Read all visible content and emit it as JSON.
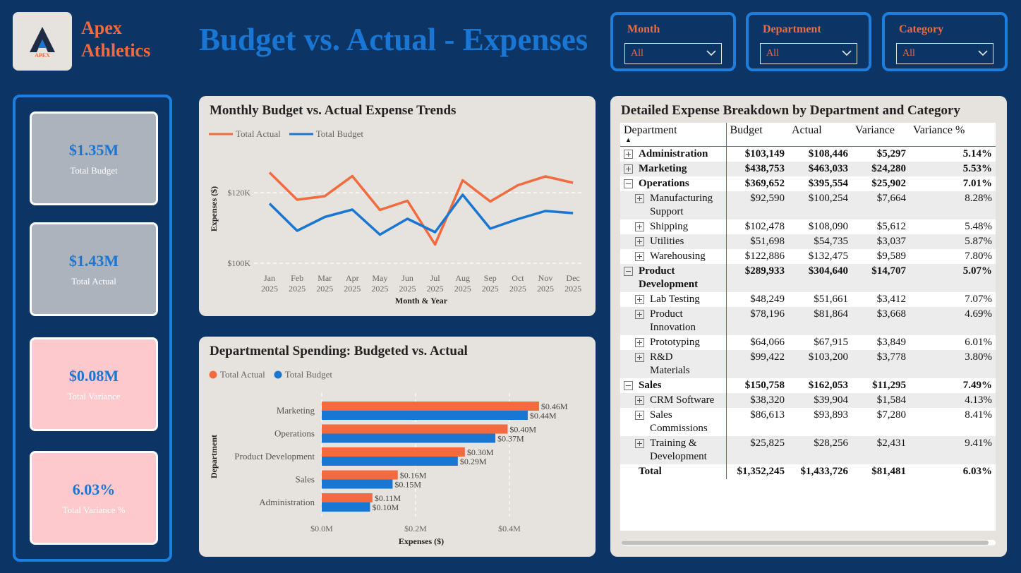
{
  "brand": {
    "line1": "Apex",
    "line2": "Athletics",
    "logo_text": "APEX"
  },
  "title": "Budget vs. Actual - Expenses",
  "slicers": [
    {
      "label": "Month",
      "value": "All"
    },
    {
      "label": "Department",
      "value": "All"
    },
    {
      "label": "Category",
      "value": "All"
    }
  ],
  "kpis": [
    {
      "value": "$1.35M",
      "caption": "Total Budget",
      "bg": "#adb3bc"
    },
    {
      "value": "$1.43M",
      "caption": "Total Actual",
      "bg": "#adb3bc"
    },
    {
      "value": "$0.08M",
      "caption": "Total Variance",
      "bg": "#fdc9cc"
    },
    {
      "value": "6.03%",
      "caption": "Total Variance %",
      "bg": "#fdc9cc"
    }
  ],
  "colors": {
    "actual": "#f26a3d",
    "budget": "#1976d2",
    "accent": "#1c7fe0",
    "background": "#0c3566"
  },
  "line_chart": {
    "title": "Monthly Budget vs. Actual Expense Trends",
    "legend": {
      "actual": "Total Actual",
      "budget": "Total Budget"
    }
  },
  "bar_chart": {
    "title": "Departmental Spending: Budgeted vs. Actual",
    "legend": {
      "actual": "Total Actual",
      "budget": "Total Budget"
    }
  },
  "chart_data": [
    {
      "type": "line",
      "title": "Monthly Budget vs. Actual Expense Trends",
      "xlabel": "Month & Year",
      "ylabel": "Expenses ($)",
      "x": [
        "Jan 2025",
        "Feb 2025",
        "Mar 2025",
        "Apr 2025",
        "May 2025",
        "Jun 2025",
        "Jul 2025",
        "Aug 2025",
        "Sep 2025",
        "Oct 2025",
        "Nov 2025",
        "Dec 2025"
      ],
      "yticks": [
        "$100K",
        "$120K"
      ],
      "ylim": [
        100000,
        127000
      ],
      "series": [
        {
          "name": "Total Actual",
          "values": [
            125700,
            118000,
            119000,
            124700,
            115100,
            117700,
            105300,
            123500,
            117500,
            122100,
            124600,
            122800
          ]
        },
        {
          "name": "Total Budget",
          "values": [
            116900,
            109200,
            113100,
            115200,
            108100,
            112600,
            108800,
            119400,
            109800,
            112500,
            114800,
            114200
          ]
        }
      ],
      "grid": "horizontal dashed",
      "legend_position": "top-left"
    },
    {
      "type": "bar",
      "orientation": "horizontal",
      "title": "Departmental Spending: Budgeted vs. Actual",
      "xlabel": "Expenses ($)",
      "ylabel": "Department",
      "categories": [
        "Marketing",
        "Operations",
        "Product Development",
        "Sales",
        "Administration"
      ],
      "xticks": [
        "$0.0M",
        "$0.2M",
        "$0.4M"
      ],
      "xlim": [
        0,
        0.5
      ],
      "series": [
        {
          "name": "Total Actual",
          "values": [
            0.463,
            0.396,
            0.305,
            0.162,
            0.108
          ],
          "labels": [
            "$0.46M",
            "$0.40M",
            "$0.30M",
            "$0.16M",
            "$0.11M"
          ]
        },
        {
          "name": "Total Budget",
          "values": [
            0.439,
            0.37,
            0.29,
            0.151,
            0.103
          ],
          "labels": [
            "$0.44M",
            "$0.37M",
            "$0.29M",
            "$0.15M",
            "$0.10M"
          ]
        }
      ],
      "legend_position": "top-left"
    }
  ],
  "table": {
    "title": "Detailed Expense Breakdown by Department and Category",
    "columns": [
      "Department",
      "Budget",
      "Actual",
      "Variance",
      "Variance %"
    ],
    "rows": [
      {
        "level": 0,
        "expander": "plus",
        "label": [
          "Administration"
        ],
        "budget": "$103,149",
        "actual": "$108,446",
        "variance": "$5,297",
        "pct": "5.14%"
      },
      {
        "level": 0,
        "expander": "plus",
        "label": [
          "Marketing"
        ],
        "budget": "$438,753",
        "actual": "$463,033",
        "variance": "$24,280",
        "pct": "5.53%"
      },
      {
        "level": 0,
        "expander": "minus",
        "label": [
          "Operations"
        ],
        "budget": "$369,652",
        "actual": "$395,554",
        "variance": "$25,902",
        "pct": "7.01%"
      },
      {
        "level": 1,
        "expander": "plus",
        "label": [
          "Manufacturing",
          "Support"
        ],
        "budget": "$92,590",
        "actual": "$100,254",
        "variance": "$7,664",
        "pct": "8.28%"
      },
      {
        "level": 1,
        "expander": "plus",
        "label": [
          "Shipping"
        ],
        "budget": "$102,478",
        "actual": "$108,090",
        "variance": "$5,612",
        "pct": "5.48%"
      },
      {
        "level": 1,
        "expander": "plus",
        "label": [
          "Utilities"
        ],
        "budget": "$51,698",
        "actual": "$54,735",
        "variance": "$3,037",
        "pct": "5.87%"
      },
      {
        "level": 1,
        "expander": "plus",
        "label": [
          "Warehousing"
        ],
        "budget": "$122,886",
        "actual": "$132,475",
        "variance": "$9,589",
        "pct": "7.80%"
      },
      {
        "level": 0,
        "expander": "minus",
        "label": [
          "Product",
          "Development"
        ],
        "budget": "$289,933",
        "actual": "$304,640",
        "variance": "$14,707",
        "pct": "5.07%"
      },
      {
        "level": 1,
        "expander": "plus",
        "label": [
          "Lab Testing"
        ],
        "budget": "$48,249",
        "actual": "$51,661",
        "variance": "$3,412",
        "pct": "7.07%"
      },
      {
        "level": 1,
        "expander": "plus",
        "label": [
          "Product",
          "Innovation"
        ],
        "budget": "$78,196",
        "actual": "$81,864",
        "variance": "$3,668",
        "pct": "4.69%"
      },
      {
        "level": 1,
        "expander": "plus",
        "label": [
          "Prototyping"
        ],
        "budget": "$64,066",
        "actual": "$67,915",
        "variance": "$3,849",
        "pct": "6.01%"
      },
      {
        "level": 1,
        "expander": "plus",
        "label": [
          "R&D",
          "Materials"
        ],
        "budget": "$99,422",
        "actual": "$103,200",
        "variance": "$3,778",
        "pct": "3.80%"
      },
      {
        "level": 0,
        "expander": "minus",
        "label": [
          "Sales"
        ],
        "budget": "$150,758",
        "actual": "$162,053",
        "variance": "$11,295",
        "pct": "7.49%"
      },
      {
        "level": 1,
        "expander": "plus",
        "label": [
          "CRM Software"
        ],
        "budget": "$38,320",
        "actual": "$39,904",
        "variance": "$1,584",
        "pct": "4.13%"
      },
      {
        "level": 1,
        "expander": "plus",
        "label": [
          "Sales",
          "Commissions"
        ],
        "budget": "$86,613",
        "actual": "$93,893",
        "variance": "$7,280",
        "pct": "8.41%"
      },
      {
        "level": 1,
        "expander": "plus",
        "label": [
          "Training &",
          "Development"
        ],
        "budget": "$25,825",
        "actual": "$28,256",
        "variance": "$2,431",
        "pct": "9.41%"
      },
      {
        "level": 0,
        "expander": "none",
        "label": [
          "Total"
        ],
        "budget": "$1,352,245",
        "actual": "$1,433,726",
        "variance": "$81,481",
        "pct": "6.03%"
      }
    ]
  }
}
